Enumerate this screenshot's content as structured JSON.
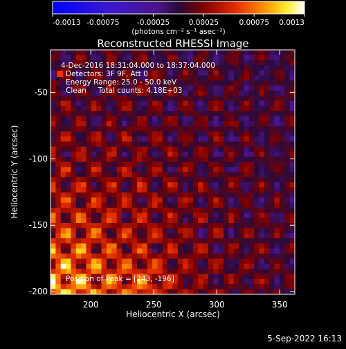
{
  "colorbar": {
    "min_label": "-0.0013",
    "ticks": [
      "-0.0013",
      "-0.00075",
      "-0.00025",
      "0.00025",
      "0.00075",
      "0.0013"
    ],
    "unit_label": "(photons cm⁻² s⁻¹ asec⁻²)"
  },
  "chart_data": {
    "type": "heatmap",
    "title": "Reconstructed RHESSI Image",
    "xlabel": "Heliocentric X (arcsec)",
    "ylabel": "Heliocentric Y (arcsec)",
    "xlim": [
      168,
      362
    ],
    "ylim": [
      -202,
      -18
    ],
    "xticks": [
      200,
      250,
      300,
      350
    ],
    "yticks": [
      -50,
      -100,
      -150,
      -200
    ],
    "colormap": "rhessi-diverging (blue-purple-red-yellow-white)",
    "zlim": [
      -0.0013,
      0.0013
    ],
    "peak": [
      243,
      -196
    ],
    "annotations": [
      "4-Dec-2016 18:31:04.000 to 18:37:04.000",
      "Detectors: 3F 9F, Att 0",
      "Energy Range: 25.0 - 50.0 keV",
      "Clean     Total counts: 4.18E+03",
      "Position of Peak = [243, -196]"
    ]
  },
  "footer": {
    "timestamp": "5-Sep-2022 16:13"
  }
}
